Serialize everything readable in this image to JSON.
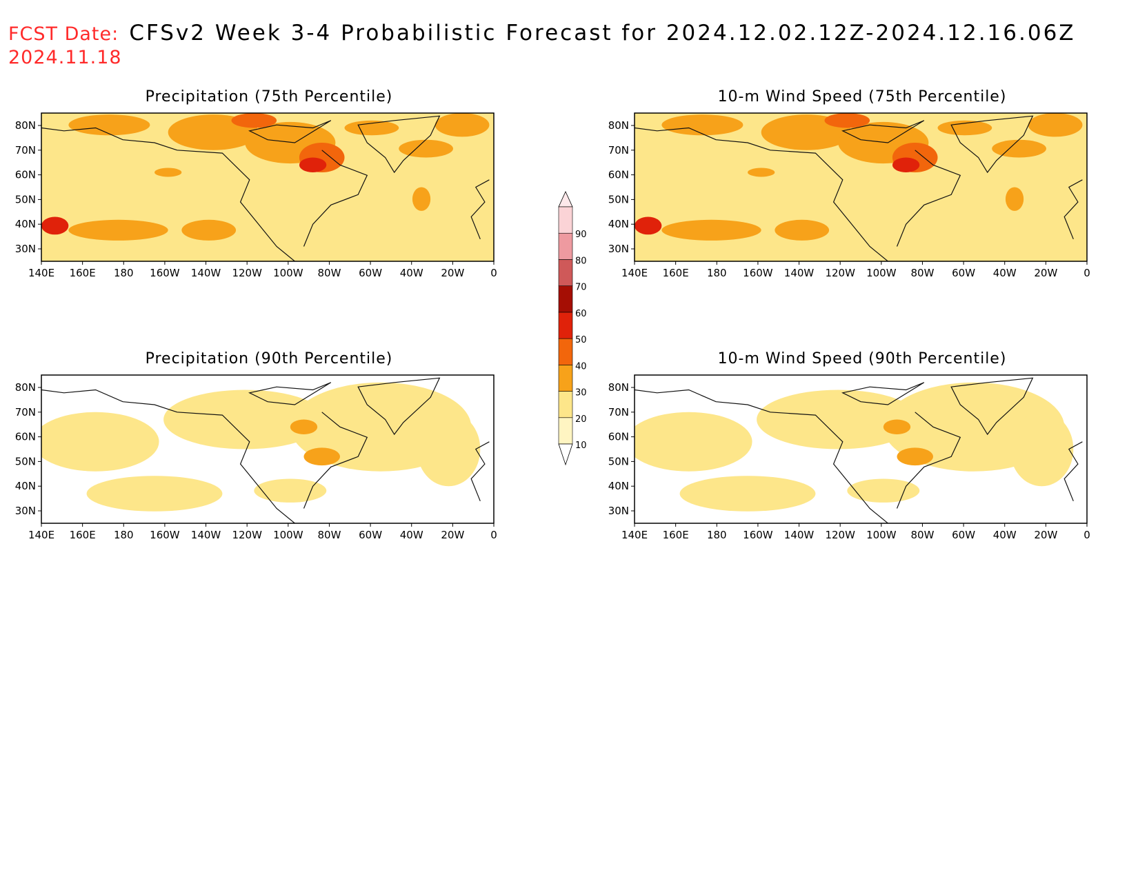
{
  "header": {
    "fcst_label": "FCST Date:",
    "title": "CFSv2 Week 3-4 Probabilistic Forecast for 2024.12.02.12Z-2024.12.16.06Z",
    "fcst_date": "2024.11.18"
  },
  "axes": {
    "lon_labels": [
      "140E",
      "160E",
      "180",
      "160W",
      "140W",
      "120W",
      "100W",
      "80W",
      "60W",
      "40W",
      "20W",
      "0"
    ],
    "lat_labels": [
      "80N",
      "70N",
      "60N",
      "50N",
      "40N",
      "30N"
    ]
  },
  "panels": [
    {
      "id": "precip75",
      "title": "Precipitation (75th Percentile)",
      "level": "high"
    },
    {
      "id": "wind75",
      "title": "10-m Wind Speed (75th Percentile)",
      "level": "high"
    },
    {
      "id": "precip90",
      "title": "Precipitation (90th Percentile)",
      "level": "low"
    },
    {
      "id": "wind90",
      "title": "10-m Wind Speed (90th Percentile)",
      "level": "low"
    }
  ],
  "colorbar": {
    "levels": [
      "10",
      "20",
      "30",
      "40",
      "50",
      "60",
      "70",
      "80",
      "90"
    ],
    "colors": [
      "#fff5c2",
      "#fde68a",
      "#f7a21a",
      "#f2660c",
      "#e0220a",
      "#a50e04",
      "#cf5959",
      "#ee9aa0",
      "#fbd3d6"
    ]
  }
}
